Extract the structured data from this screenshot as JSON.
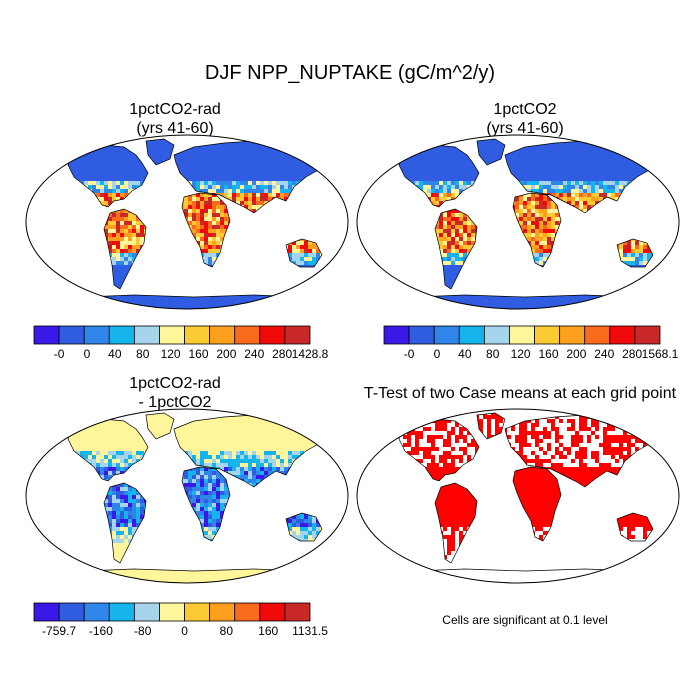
{
  "title": "DJF NPP_NUPTAKE (gC/m^2/y)",
  "panels": [
    {
      "id": "p1",
      "title": "1pctCO2-rad",
      "subtitle": "(yrs 41-60)",
      "type": "absolute"
    },
    {
      "id": "p2",
      "title": "1pctCO2",
      "subtitle": "(yrs 41-60)",
      "type": "absolute"
    },
    {
      "id": "p3",
      "title": "1pctCO2-rad",
      "subtitle": "- 1pctCO2",
      "type": "difference"
    },
    {
      "id": "p4",
      "title": "T-Test of two Case means at each grid point",
      "subtitle": "",
      "type": "significance"
    }
  ],
  "colorbars": [
    {
      "colors": [
        "#3a19e8",
        "#2f5ce0",
        "#2f86e8",
        "#15b4ec",
        "#a6d4ec",
        "#fff59a",
        "#fcca32",
        "#fca01e",
        "#f86a1c",
        "#f00a0a",
        "#c92828"
      ],
      "labels": [
        "-0",
        "0",
        "40",
        "80",
        "120",
        "160",
        "200",
        "240",
        "280",
        "1428.8"
      ]
    },
    {
      "colors": [
        "#3a19e8",
        "#2f5ce0",
        "#2f86e8",
        "#15b4ec",
        "#a6d4ec",
        "#fff59a",
        "#fcca32",
        "#fca01e",
        "#f86a1c",
        "#f00a0a",
        "#c92828"
      ],
      "labels": [
        "-0",
        "0",
        "40",
        "80",
        "120",
        "160",
        "200",
        "240",
        "280",
        "1568.1"
      ]
    },
    {
      "colors": [
        "#3a19e8",
        "#2f5ce0",
        "#2f86e8",
        "#15b4ec",
        "#a6d4ec",
        "#fff59a",
        "#fcca32",
        "#fca01e",
        "#f86a1c",
        "#f00a0a",
        "#c92828"
      ],
      "labels": [
        "-759.7",
        "-160",
        "-80",
        "0",
        "80",
        "160",
        "1131.5"
      ]
    }
  ],
  "significance_note": "Cells are significant at 0.1 level",
  "colors": {
    "significant": "#ff0000",
    "land_low": "#3356e0",
    "ice": "#3a5fe0",
    "coast": "#000000"
  }
}
